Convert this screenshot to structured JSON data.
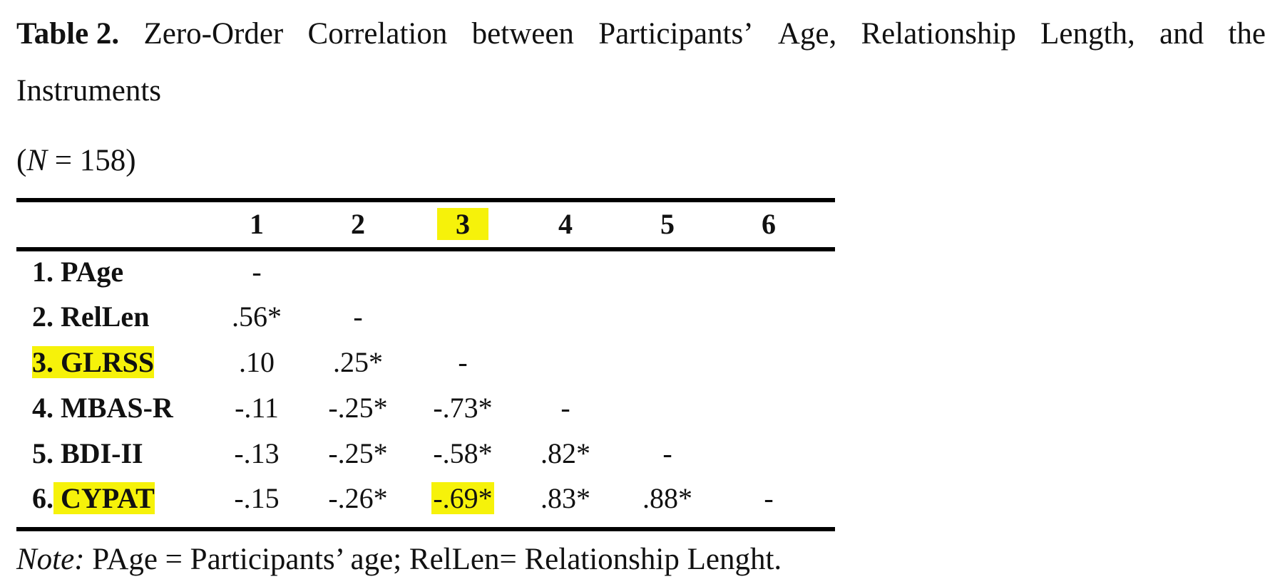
{
  "caption": {
    "label": "Table 2.",
    "words": [
      "Zero-Order",
      "Correlation",
      "between",
      "Participants’",
      "Age,",
      "Relationship",
      "Length,",
      "and",
      "the"
    ],
    "line2": "Instruments"
  },
  "sample": {
    "prefix": "(",
    "n_symbol": "N",
    "equals_value": " = 158)"
  },
  "table": {
    "headers": [
      "1",
      "2",
      "3",
      "4",
      "5",
      "6"
    ],
    "highlighted_header": "3",
    "rows": [
      {
        "number": "1.",
        "name": "PAge",
        "cells": [
          "-",
          "",
          "",
          "",
          "",
          ""
        ]
      },
      {
        "number": "2.",
        "name": "RelLen",
        "cells": [
          ".56*",
          "-",
          "",
          "",
          "",
          ""
        ]
      },
      {
        "number": "3.",
        "name": "GLRSS",
        "cells": [
          ".10",
          ".25*",
          "-",
          "",
          "",
          ""
        ]
      },
      {
        "number": "4.",
        "name": "MBAS-R",
        "cells": [
          "-.11",
          "-.25*",
          "-.73*",
          "-",
          "",
          ""
        ]
      },
      {
        "number": "5.",
        "name": "BDI-II",
        "cells": [
          "-.13",
          "-.25*",
          "-.58*",
          ".82*",
          "-",
          ""
        ]
      },
      {
        "number": "6.",
        "name": "CYPAT",
        "cells": [
          "-.15",
          "-.26*",
          "-.69*",
          ".83*",
          ".88*",
          "-"
        ]
      }
    ],
    "highlighted_labels": [
      "3. GLRSS",
      "CYPAT"
    ],
    "highlighted_cells": [
      {
        "row": 6,
        "col": 3
      }
    ],
    "highlight_color": "#f6f20a"
  },
  "note": {
    "label": "Note:",
    "text": " PAge = Participants’ age; RelLen= Relationship Lenght."
  }
}
